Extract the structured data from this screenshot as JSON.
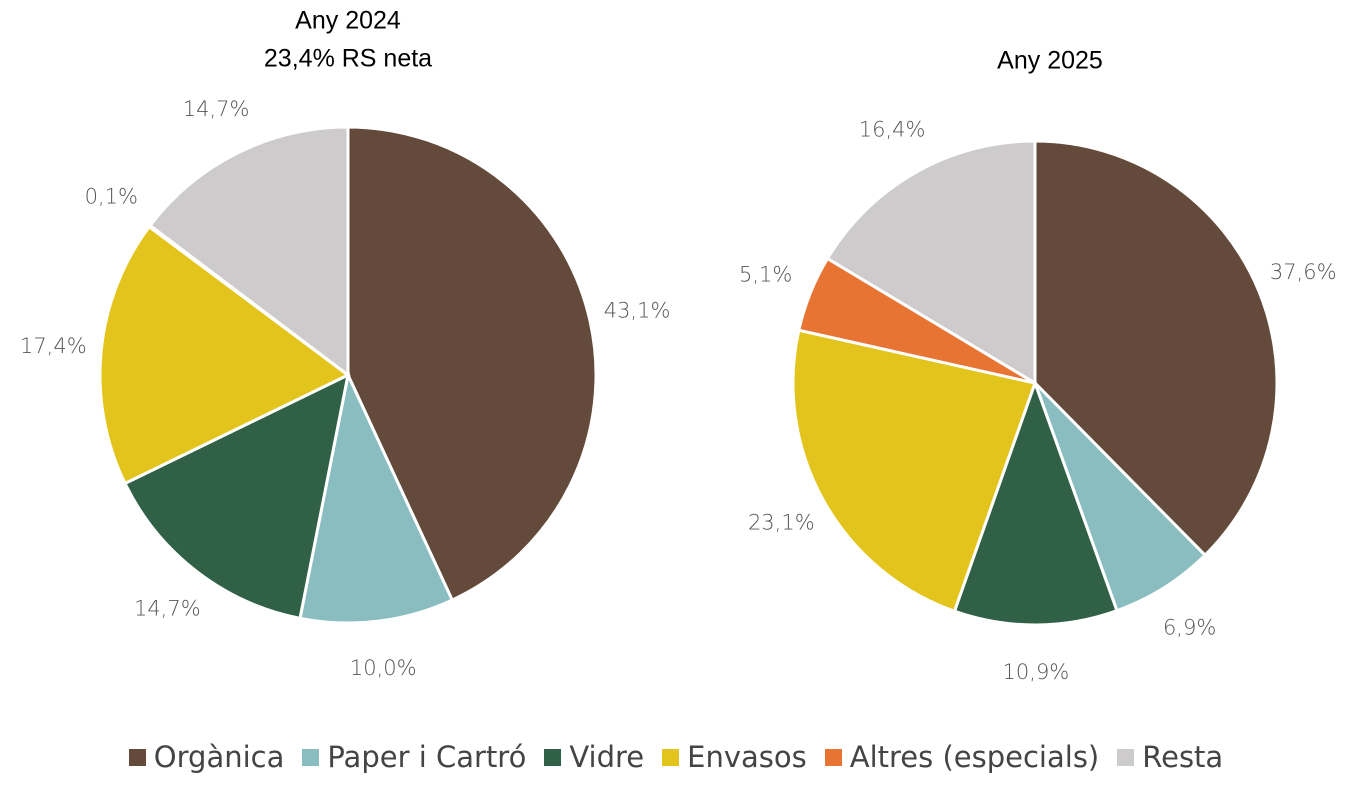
{
  "chart_data": [
    {
      "type": "pie",
      "title": "Any 2024",
      "subtitle": "23,4% RS neta",
      "categories": [
        "Orgànica",
        "Paper i Cartró",
        "Vidre",
        "Envasos",
        "Altres (especials)",
        "Resta"
      ],
      "values": [
        43.1,
        10.0,
        14.7,
        17.4,
        0.1,
        14.7
      ],
      "value_labels": [
        "43,1%",
        "10,0%",
        "14,7%",
        "17,4%",
        "0,1%",
        "14,7%"
      ],
      "colors": [
        "#634a3b",
        "#89bdc0",
        "#306045",
        "#e3c41c",
        "#e87433",
        "#cdcbcb"
      ]
    },
    {
      "type": "pie",
      "title": "Any 2025",
      "categories": [
        "Orgànica",
        "Paper i Cartró",
        "Vidre",
        "Envasos",
        "Altres (especials)",
        "Resta"
      ],
      "values": [
        37.6,
        6.9,
        10.9,
        23.1,
        5.1,
        16.4
      ],
      "value_labels": [
        "37,6%",
        "6,9%",
        "10,9%",
        "23,1%",
        "5,1%",
        "16,4%"
      ],
      "colors": [
        "#634a3b",
        "#89bdc0",
        "#306045",
        "#e3c41c",
        "#e87433",
        "#cdcbcb"
      ]
    }
  ]
}
